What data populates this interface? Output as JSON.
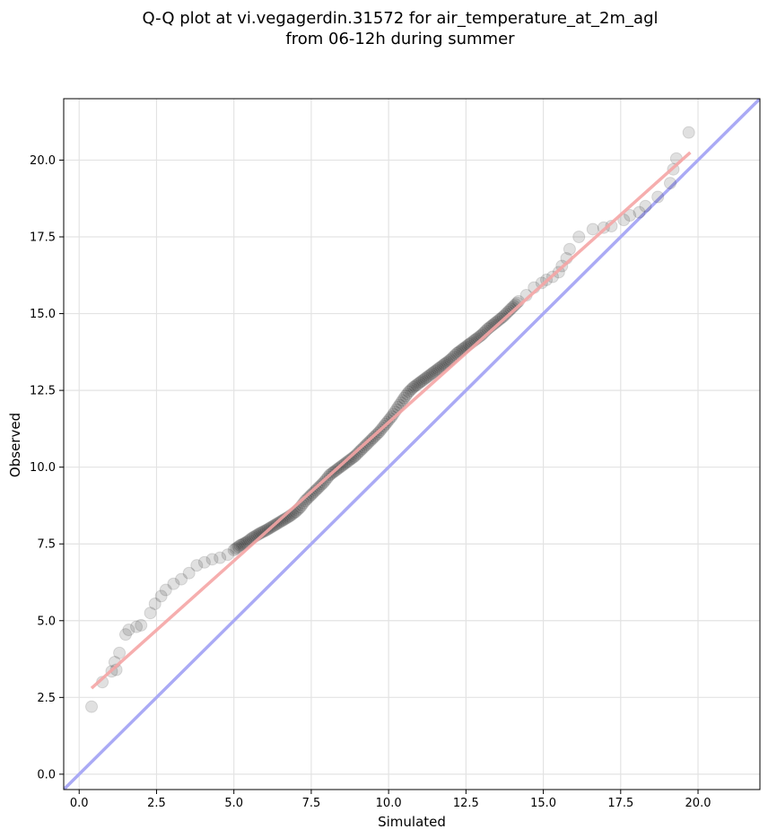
{
  "chart_data": {
    "type": "scatter",
    "title_line1": "Q-Q plot at vi.vegagerdin.31572 for air_temperature_at_2m_agl",
    "title_line2": "from 06-12h during summer",
    "xlabel": "Simulated",
    "ylabel": "Observed",
    "xlim": [
      -0.5,
      22.0
    ],
    "ylim": [
      -0.5,
      22.0
    ],
    "grid": true,
    "xticks": [
      0.0,
      2.5,
      5.0,
      7.5,
      10.0,
      12.5,
      15.0,
      17.5,
      20.0
    ],
    "xtick_labels": [
      "0.0",
      "2.5",
      "5.0",
      "7.5",
      "10.0",
      "12.5",
      "15.0",
      "17.5",
      "20.0"
    ],
    "yticks": [
      0.0,
      2.5,
      5.0,
      7.5,
      10.0,
      12.5,
      15.0,
      17.5,
      20.0
    ],
    "ytick_labels": [
      "0.0",
      "2.5",
      "5.0",
      "7.5",
      "10.0",
      "12.5",
      "15.0",
      "17.5",
      "20.0"
    ],
    "identity_line": {
      "x": [
        -0.5,
        22.0
      ],
      "y": [
        -0.5,
        22.0
      ],
      "color": "#aaaaf5"
    },
    "fit_line": {
      "x": [
        0.4,
        19.75
      ],
      "y": [
        2.8,
        20.25
      ],
      "color": "#f5a5a5"
    },
    "points_color": "#000000",
    "series": [
      {
        "x": [
          0.4,
          0.75,
          1.05,
          1.15,
          1.2,
          1.3,
          1.5,
          1.6,
          1.85,
          2.0,
          2.3,
          2.45,
          2.65,
          2.8,
          3.05,
          3.3,
          3.55,
          3.8,
          4.05,
          4.3,
          4.55,
          4.8,
          5.0,
          5.2,
          5.4,
          5.6,
          5.85,
          6.05,
          6.3,
          6.55,
          6.8,
          7.0,
          7.15,
          7.3,
          7.5,
          7.7,
          7.9,
          8.1,
          8.3,
          8.5,
          8.7,
          8.9,
          9.1,
          9.3,
          9.5,
          9.7,
          9.9,
          10.1,
          10.3,
          10.5,
          10.65,
          10.8,
          11.0,
          11.2,
          11.4,
          11.6,
          11.8,
          12.0,
          12.2,
          12.4,
          12.6,
          12.8,
          13.0,
          13.2,
          13.45,
          13.7,
          13.95,
          14.2,
          14.45,
          14.7,
          14.95,
          15.1,
          15.3,
          15.5,
          15.6,
          15.75,
          15.85,
          16.15,
          16.6,
          16.95,
          17.2,
          17.6,
          17.8,
          18.1,
          18.3,
          18.7,
          19.1,
          19.2,
          19.3,
          19.7
        ],
        "y": [
          2.2,
          3.0,
          3.35,
          3.65,
          3.4,
          3.95,
          4.55,
          4.7,
          4.8,
          4.85,
          5.25,
          5.55,
          5.8,
          6.0,
          6.2,
          6.35,
          6.55,
          6.8,
          6.9,
          7.0,
          7.05,
          7.15,
          7.3,
          7.45,
          7.55,
          7.7,
          7.85,
          7.95,
          8.1,
          8.25,
          8.4,
          8.55,
          8.7,
          8.9,
          9.1,
          9.3,
          9.5,
          9.75,
          9.9,
          10.05,
          10.2,
          10.35,
          10.55,
          10.75,
          10.95,
          11.15,
          11.4,
          11.65,
          11.95,
          12.25,
          12.45,
          12.6,
          12.75,
          12.9,
          13.05,
          13.2,
          13.35,
          13.5,
          13.7,
          13.85,
          14.0,
          14.15,
          14.3,
          14.5,
          14.7,
          14.9,
          15.15,
          15.4,
          15.6,
          15.85,
          16.0,
          16.1,
          16.2,
          16.35,
          16.55,
          16.8,
          17.1,
          17.5,
          17.75,
          17.8,
          17.85,
          18.05,
          18.2,
          18.3,
          18.5,
          18.8,
          19.25,
          19.7,
          20.05,
          20.9
        ]
      }
    ]
  }
}
